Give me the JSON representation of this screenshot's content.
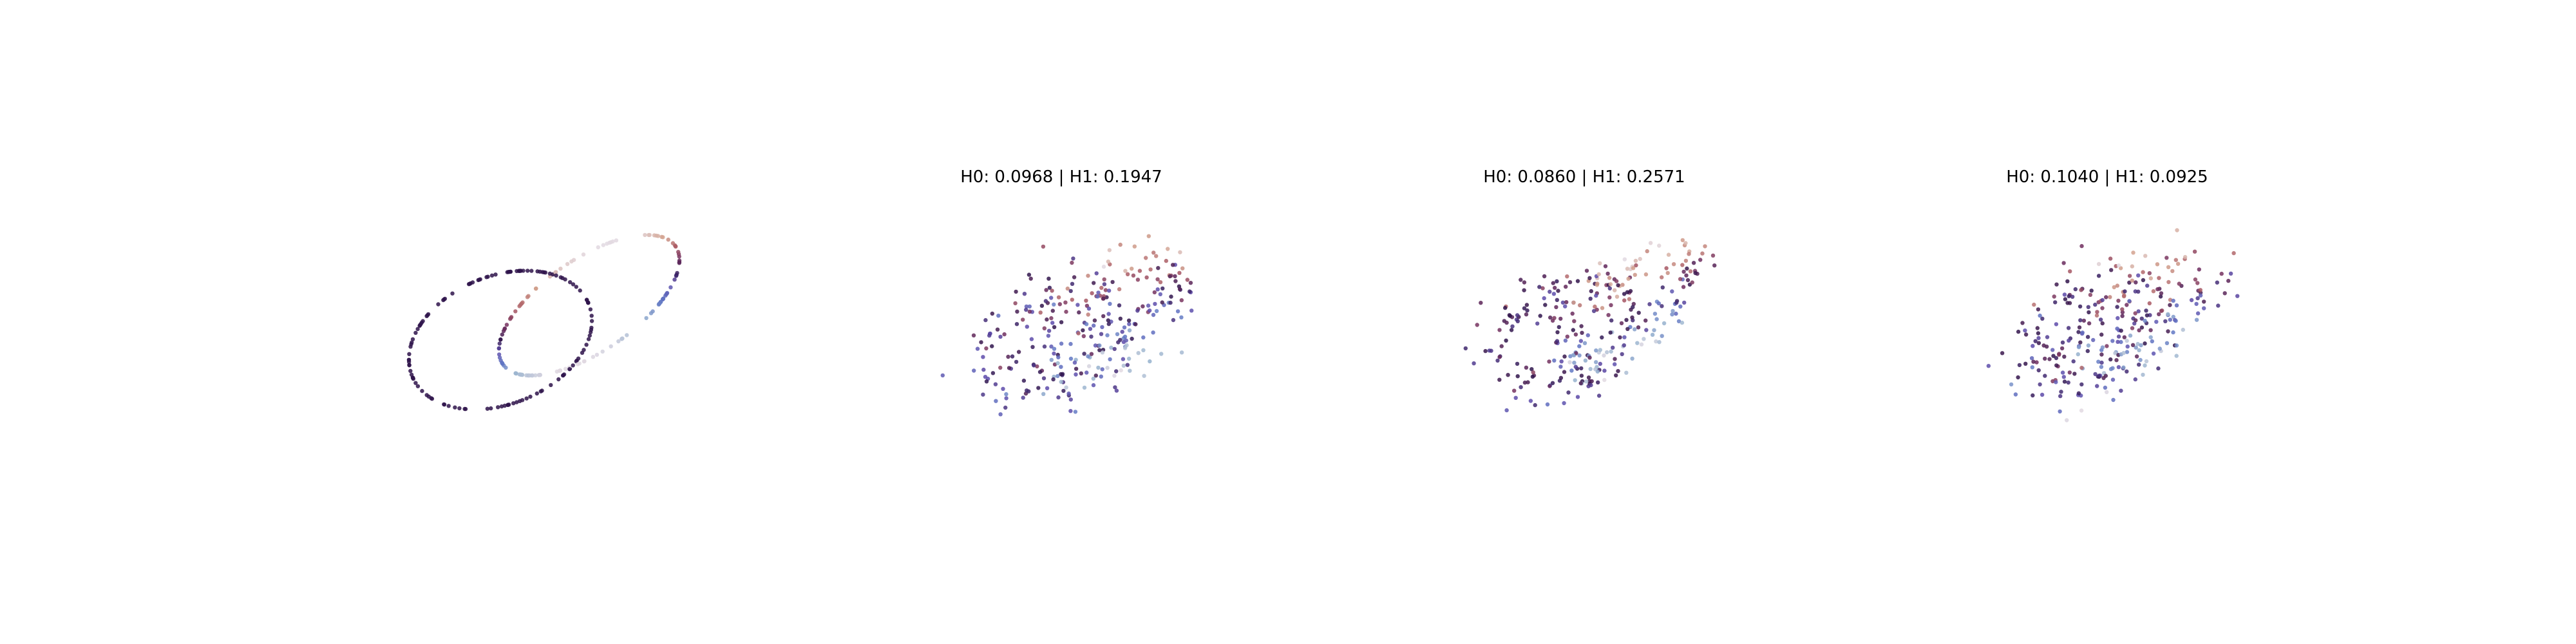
{
  "figure": {
    "colormap": "twilight",
    "background": "#ffffff",
    "axes_visible": false
  },
  "chart_data": [
    {
      "type": "scatter",
      "title": "",
      "description_key": "clean",
      "shape": "two interlocked tilted rings",
      "series": [
        {
          "name": "",
          "points": [],
          "noise": 0.0,
          "count": 260
        }
      ]
    },
    {
      "type": "scatter",
      "title": "H0: 0.0968 | H1: 0.1947",
      "shape": "two interlocked tilted rings with noise",
      "series": [
        {
          "name": "",
          "points": [],
          "noise": 0.09,
          "count": 300
        }
      ]
    },
    {
      "type": "scatter",
      "title": "H0: 0.0860 | H1: 0.2571",
      "shape": "two interlocked tilted rings with noise",
      "series": [
        {
          "name": "",
          "points": [],
          "noise": 0.07,
          "count": 300
        }
      ]
    },
    {
      "type": "scatter",
      "title": "H0: 0.1040 | H1: 0.0925",
      "shape": "two interlocked tilted rings with noise",
      "series": [
        {
          "name": "",
          "points": [],
          "noise": 0.11,
          "count": 300
        }
      ]
    }
  ]
}
